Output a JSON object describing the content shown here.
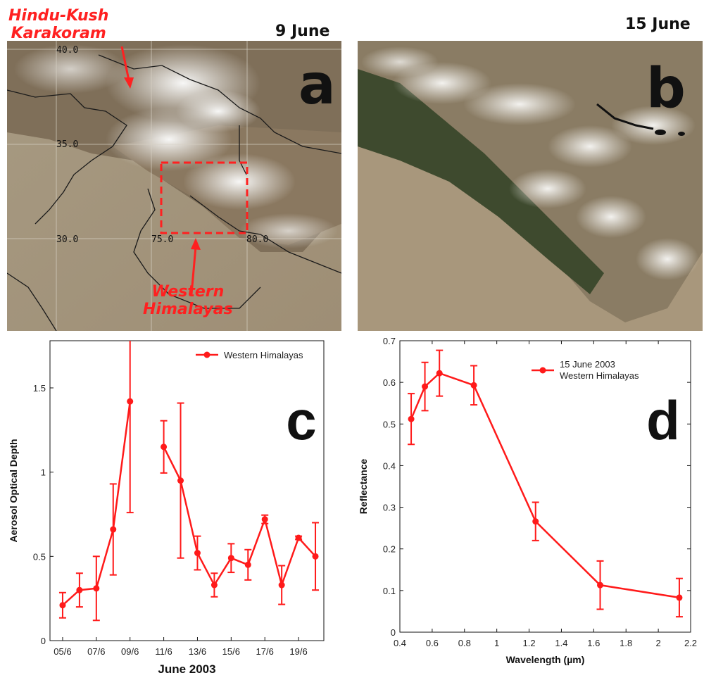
{
  "panel_a": {
    "date": "9 June",
    "letter": "a",
    "annotations": {
      "hk_line1": "Hindu-Kush",
      "hk_line2": "Karakoram",
      "wh_line1": "Western",
      "wh_line2": "Himalayas"
    },
    "grid_labels": [
      "40.0",
      "35.0",
      "30.0",
      "75.0",
      "80.0"
    ]
  },
  "panel_b": {
    "date": "15 June",
    "letter": "b"
  },
  "colors": {
    "series": "#ff1a1a",
    "annotation": "#ff2020",
    "dust": "#b09e83",
    "snow": "#f4f4f2"
  },
  "chart_data": [
    {
      "type": "line",
      "panel_letter": "c",
      "xlabel": "June 2003",
      "ylabel": "Aerosol Optical Depth",
      "legend": "Western Himalayas",
      "legend_position": "top-right",
      "x_categories": [
        "05/6",
        "06/6",
        "07/6",
        "08/6",
        "09/6",
        "10/6",
        "11/6",
        "12/6",
        "13/6",
        "14/6",
        "15/6",
        "16/6",
        "17/6",
        "18/6",
        "19/6",
        "20/6"
      ],
      "x_tick_labels": [
        "05/6",
        "07/6",
        "09/6",
        "11/6",
        "13/6",
        "15/6",
        "17/6",
        "19/6"
      ],
      "yticks": [
        "0",
        "0.5",
        "1",
        "1.5"
      ],
      "ylim": [
        0,
        1.78
      ],
      "segments": [
        {
          "x": [
            "05/6",
            "06/6",
            "07/6",
            "08/6",
            "09/6"
          ],
          "y": [
            0.21,
            0.3,
            0.31,
            0.66,
            1.42
          ],
          "yerr": [
            0.075,
            0.1,
            0.19,
            0.27,
            0.66
          ]
        },
        {
          "x": [
            "11/6",
            "12/6",
            "13/6",
            "14/6",
            "15/6",
            "16/6",
            "17/6",
            "18/6",
            "19/6",
            "20/6"
          ],
          "y": [
            1.15,
            0.95,
            0.52,
            0.33,
            0.49,
            0.45,
            0.72,
            0.33,
            0.61,
            0.5
          ],
          "yerr": [
            0.155,
            0.46,
            0.1,
            0.07,
            0.085,
            0.09,
            0.025,
            0.115,
            0.01,
            0.2
          ]
        }
      ]
    },
    {
      "type": "line",
      "panel_letter": "d",
      "xlabel": "Wavelength (µm)",
      "ylabel": "Reflectance",
      "legend_line1": "15 June 2003",
      "legend_line2": "Western Himalayas",
      "legend_position": "top-right",
      "xticks": [
        "0.4",
        "0.6",
        "0.8",
        "1",
        "1.2",
        "1.4",
        "1.6",
        "1.8",
        "2",
        "2.2"
      ],
      "yticks": [
        "0",
        "0.1",
        "0.2",
        "0.3",
        "0.4",
        "0.5",
        "0.6",
        "0.7"
      ],
      "xlim": [
        0.4,
        2.2
      ],
      "ylim": [
        0,
        0.7
      ],
      "x": [
        0.47,
        0.555,
        0.645,
        0.858,
        1.24,
        1.64,
        2.13
      ],
      "y": [
        0.512,
        0.59,
        0.622,
        0.593,
        0.266,
        0.113,
        0.083
      ],
      "yerr": [
        0.061,
        0.058,
        0.055,
        0.047,
        0.046,
        0.058,
        0.046
      ]
    }
  ]
}
